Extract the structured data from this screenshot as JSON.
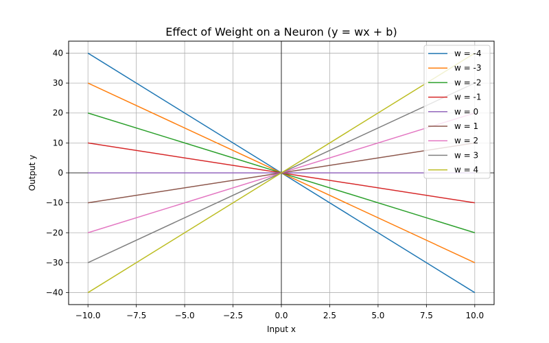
{
  "chart_data": {
    "type": "line",
    "title": "Effect of Weight on a Neuron (y = wx + b)",
    "xlabel": "Input x",
    "ylabel": "Output y",
    "xlim": [
      -11,
      11
    ],
    "ylim": [
      -44,
      44
    ],
    "x_ticks": [
      -10.0,
      -7.5,
      -5.0,
      -2.5,
      0.0,
      2.5,
      5.0,
      7.5,
      10.0
    ],
    "x_tick_labels": [
      "−10.0",
      "−7.5",
      "−5.0",
      "−2.5",
      "0.0",
      "2.5",
      "5.0",
      "7.5",
      "10.0"
    ],
    "y_ticks": [
      -40,
      -30,
      -20,
      -10,
      0,
      10,
      20,
      30,
      40
    ],
    "y_tick_labels": [
      "−40",
      "−30",
      "−20",
      "−10",
      "0",
      "10",
      "20",
      "30",
      "40"
    ],
    "grid": true,
    "legend_position": "top-right",
    "x": [
      -10,
      10
    ],
    "series": [
      {
        "name": "w = -4",
        "values": [
          40,
          -40
        ],
        "color": "#1f77b4"
      },
      {
        "name": "w = -3",
        "values": [
          30,
          -30
        ],
        "color": "#ff7f0e"
      },
      {
        "name": "w = -2",
        "values": [
          20,
          -20
        ],
        "color": "#2ca02c"
      },
      {
        "name": "w = -1",
        "values": [
          10,
          -10
        ],
        "color": "#d62728"
      },
      {
        "name": "w = 0",
        "values": [
          0,
          0
        ],
        "color": "#9467bd"
      },
      {
        "name": "w = 1",
        "values": [
          -10,
          10
        ],
        "color": "#8c564b"
      },
      {
        "name": "w = 2",
        "values": [
          -20,
          20
        ],
        "color": "#e377c2"
      },
      {
        "name": "w = 3",
        "values": [
          -30,
          30
        ],
        "color": "#7f7f7f"
      },
      {
        "name": "w = 4",
        "values": [
          -40,
          40
        ],
        "color": "#bcbd22"
      }
    ]
  }
}
